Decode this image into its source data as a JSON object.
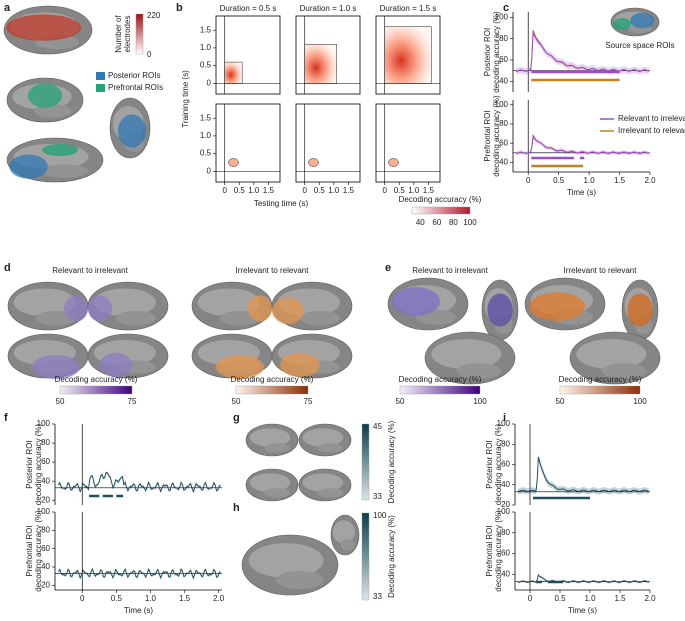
{
  "panels": {
    "a": {
      "letter": "a",
      "colorbar_title": [
        "Number of",
        "electrodes"
      ],
      "colorbar_ticks": [
        "220",
        "0"
      ],
      "legend": [
        "Posterior ROIs",
        "Prefrontal ROIs"
      ]
    },
    "b": {
      "letter": "b",
      "titles": [
        "Duration = 0.5 s",
        "Duration = 1.0 s",
        "Duration = 1.5 s"
      ],
      "ylabel": "Training time (s)",
      "xlabel": "Testing time (s)",
      "yticks": [
        "0",
        "0.5",
        "1.0",
        "1.5"
      ],
      "xticks": [
        "0",
        "0.5",
        "1.0",
        "1.5"
      ],
      "colorbar_title": "Decoding accuracy (%)",
      "colorbar_ticks": [
        "40",
        "60",
        "80",
        "100"
      ]
    },
    "c": {
      "letter": "c",
      "inset_label": "Source space ROIs",
      "ylabels": [
        [
          "Posterior ROI",
          "decoding accuracy (%)"
        ],
        [
          "Prefrontal ROI",
          "decoding accuracy (%)"
        ]
      ],
      "yticks": [
        [
          "40",
          "60",
          "80",
          "100"
        ],
        [
          "40",
          "60",
          "80",
          "100"
        ]
      ],
      "xticks": [
        "0",
        "0.5",
        "1.0",
        "1.5",
        "2.0"
      ],
      "xlabel": "Time (s)",
      "legend": [
        "Relevant to irrelevant",
        "Irrelevant to relevant"
      ]
    },
    "d": {
      "letter": "d",
      "titles": [
        "Relevant to irrelevant",
        "Irrelevant to relevant"
      ],
      "colorbars": [
        {
          "title": "Decoding accuracy (%)",
          "ticks": [
            "50",
            "75"
          ]
        },
        {
          "title": "Decoding accuracy (%)",
          "ticks": [
            "50",
            "75"
          ]
        }
      ]
    },
    "e": {
      "letter": "e",
      "titles": [
        "Relevant to irrelevant",
        "Irrelevant to relevant"
      ],
      "colorbars": [
        {
          "title": "Decoding accuracy (%)",
          "ticks": [
            "50",
            "100"
          ]
        },
        {
          "title": "Decoding accuracy (%)",
          "ticks": [
            "50",
            "100"
          ]
        }
      ]
    },
    "f": {
      "letter": "f",
      "ylabels": [
        [
          "Posterior ROI",
          "decoding accuracy (%)"
        ],
        [
          "Prefrontal ROI",
          "decoding accuracy (%)"
        ]
      ],
      "yticks": [
        [
          "20",
          "40",
          "60",
          "80",
          "100"
        ],
        [
          "20",
          "40",
          "60",
          "80",
          "100"
        ]
      ],
      "xticks": [
        "0",
        "0.5",
        "1.0",
        "1.5",
        "2.0"
      ],
      "xlabel": "Time (s)"
    },
    "g": {
      "letter": "g",
      "colorbar_title": "Decoding accuracy (%)",
      "colorbar_ticks": [
        "45",
        "33"
      ]
    },
    "h": {
      "letter": "h",
      "colorbar_title": "Decoding accuracy (%)",
      "colorbar_ticks": [
        "100",
        "33"
      ]
    },
    "i": {
      "letter": "i",
      "ylabels": [
        [
          "Posterior ROI",
          "decoding accuracy (%)"
        ],
        [
          "Prefrontal ROI",
          "decoding accuracy (%)"
        ]
      ],
      "yticks": [
        [
          "20",
          "40",
          "60",
          "80",
          "100"
        ],
        [
          "40",
          "60",
          "80",
          "100"
        ]
      ],
      "xticks": [
        "0",
        "0.5",
        "1.0",
        "1.5",
        "2.0"
      ],
      "xlabel": "Time (s)"
    }
  }
}
